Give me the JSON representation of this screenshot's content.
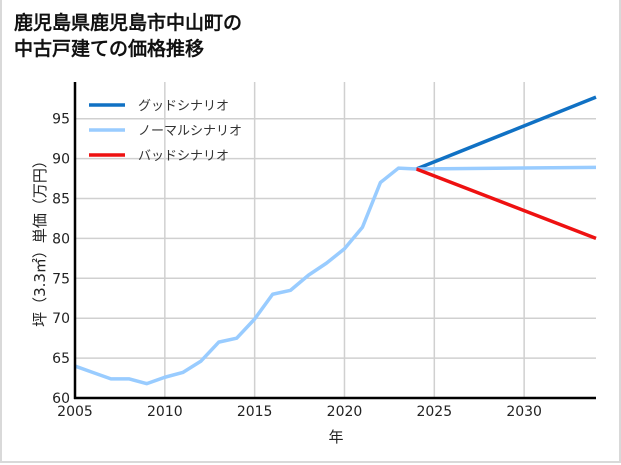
{
  "title_line1": "鹿児島県鹿児島市中山町の",
  "title_line2": "中古戸建ての価格推移",
  "chart_data": {
    "type": "line",
    "title": "鹿児島県鹿児島市中山町の中古戸建ての価格推移",
    "xlabel": "年",
    "ylabel": "坪（3.3㎡）単価（万円）",
    "xlim": [
      2005,
      2034
    ],
    "ylim": [
      60,
      99.6
    ],
    "xticks": [
      2005,
      2010,
      2015,
      2020,
      2025,
      2030
    ],
    "yticks": [
      60,
      65,
      70,
      75,
      80,
      85,
      90,
      95
    ],
    "grid": true,
    "legend_position": "upper left",
    "history": {
      "x": [
        2005,
        2006,
        2007,
        2008,
        2009,
        2010,
        2011,
        2012,
        2013,
        2014,
        2015,
        2016,
        2017,
        2018,
        2019,
        2020,
        2021,
        2022,
        2023,
        2024
      ],
      "y": [
        64.0,
        63.2,
        62.4,
        62.4,
        61.8,
        62.6,
        63.2,
        64.6,
        67.0,
        67.5,
        69.9,
        73.0,
        73.5,
        75.4,
        76.9,
        78.7,
        81.4,
        87.0,
        88.8,
        88.7
      ]
    },
    "series": [
      {
        "name": "グッドシナリオ",
        "color": "#1071c4",
        "x": [
          2024,
          2034
        ],
        "y": [
          88.7,
          97.7
        ]
      },
      {
        "name": "ノーマルシナリオ",
        "color": "#99ccff",
        "x": [
          2024,
          2034
        ],
        "y": [
          88.7,
          88.9
        ]
      },
      {
        "name": "バッドシナリオ",
        "color": "#ee1111",
        "x": [
          2024,
          2034
        ],
        "y": [
          88.7,
          80.0
        ]
      }
    ]
  }
}
